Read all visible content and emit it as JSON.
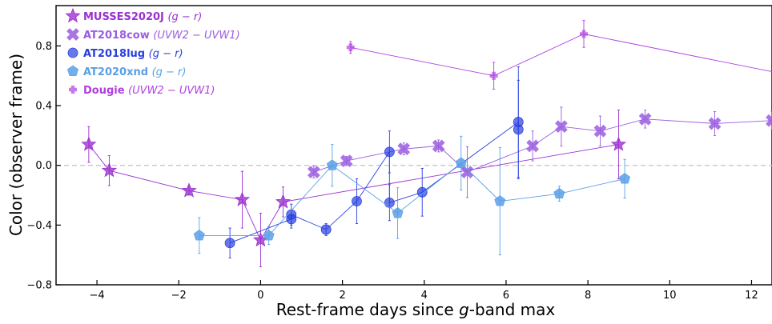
{
  "chart_data": {
    "type": "scatter",
    "xlabel_prefix": "Rest-frame days since ",
    "xlabel_band": "g",
    "xlabel_suffix": "-band max",
    "ylabel": "Color (observer frame)",
    "xlim": [
      -5.0,
      12.5
    ],
    "ylim": [
      -0.8,
      1.07
    ],
    "x_ticks": [
      -4,
      -2,
      0,
      2,
      4,
      6,
      8,
      10,
      12
    ],
    "y_ticks": [
      -0.8,
      -0.4,
      0.0,
      0.4,
      0.8
    ],
    "x_tick_labels": [
      "−4",
      "−2",
      "0",
      "2",
      "4",
      "6",
      "8",
      "10",
      "12"
    ],
    "y_tick_labels": [
      "−0.8",
      "−0.4",
      "0.0",
      "0.4",
      "0.8"
    ],
    "zero_line": 0.0,
    "legend_position": "upper-left",
    "series": [
      {
        "name": "MUSSES2020J",
        "band": "(g − r)",
        "marker": "star",
        "color": "#9b30d0",
        "points": [
          {
            "x": -4.2,
            "y": 0.14,
            "err": 0.12
          },
          {
            "x": -3.7,
            "y": -0.035,
            "err": 0.1
          },
          {
            "x": -1.75,
            "y": -0.17,
            "err": 0.03
          },
          {
            "x": -0.45,
            "y": -0.23,
            "err": 0.19
          },
          {
            "x": 0.0,
            "y": -0.5,
            "err": 0.18
          },
          {
            "x": 0.55,
            "y": -0.245,
            "err": 0.1
          },
          {
            "x": 8.75,
            "y": 0.14,
            "err": 0.23
          }
        ]
      },
      {
        "name": "AT2018cow",
        "band": "(UVW2 − UVW1)",
        "marker": "x",
        "color": "#9a5de0",
        "points": [
          {
            "x": 1.3,
            "y": -0.045,
            "err": 0.04
          },
          {
            "x": 2.1,
            "y": 0.03,
            "err": 0.03
          },
          {
            "x": 3.5,
            "y": 0.11,
            "err": 0.04
          },
          {
            "x": 4.35,
            "y": 0.13,
            "err": 0.04
          },
          {
            "x": 5.05,
            "y": -0.045,
            "err": 0.17
          },
          {
            "x": 6.65,
            "y": 0.13,
            "err": 0.1
          },
          {
            "x": 7.35,
            "y": 0.26,
            "err": 0.13
          },
          {
            "x": 8.3,
            "y": 0.23,
            "err": 0.1
          },
          {
            "x": 9.4,
            "y": 0.31,
            "err": 0.06
          },
          {
            "x": 11.1,
            "y": 0.28,
            "err": 0.08
          },
          {
            "x": 12.5,
            "y": 0.3,
            "err": 0.06
          }
        ]
      },
      {
        "name": "AT2018lug",
        "band": "(g − r)",
        "marker": "circle",
        "color": "#2a3fe0",
        "points": [
          {
            "x": -0.75,
            "y": -0.52,
            "err": 0.1
          },
          {
            "x": 0.75,
            "y": -0.36,
            "err": 0.06
          },
          {
            "x": 0.75,
            "y": -0.33,
            "err": 0.07
          },
          {
            "x": 1.6,
            "y": -0.43,
            "err": 0.04
          },
          {
            "x": 2.35,
            "y": -0.24,
            "err": 0.15
          },
          {
            "x": 3.15,
            "y": 0.09,
            "err": 0.14
          },
          {
            "x": 3.15,
            "y": -0.25,
            "err": 0.12
          },
          {
            "x": 3.95,
            "y": -0.18,
            "err": 0.16
          },
          {
            "x": 6.3,
            "y": 0.29,
            "err": 0.37
          },
          {
            "x": 6.3,
            "y": 0.24,
            "err": 0.33
          }
        ]
      },
      {
        "name": "AT2020xnd",
        "band": "(g − r)",
        "marker": "pentagon",
        "color": "#5aa0e6",
        "points": [
          {
            "x": -1.5,
            "y": -0.47,
            "err": 0.12
          },
          {
            "x": 0.2,
            "y": -0.47,
            "err": 0.06
          },
          {
            "x": 1.75,
            "y": 0.0,
            "err": 0.14
          },
          {
            "x": 3.35,
            "y": -0.32,
            "err": 0.17
          },
          {
            "x": 4.9,
            "y": 0.015,
            "err": 0.18
          },
          {
            "x": 5.85,
            "y": -0.24,
            "err": 0.36
          },
          {
            "x": 7.3,
            "y": -0.19,
            "err": 0.05
          },
          {
            "x": 8.9,
            "y": -0.09,
            "err": 0.13
          }
        ]
      },
      {
        "name": "Dougie",
        "band": "(UVW2 − UVW1)",
        "marker": "plus",
        "color": "#b040e0",
        "points": [
          {
            "x": 2.2,
            "y": 0.79,
            "err": 0.04
          },
          {
            "x": 5.7,
            "y": 0.6,
            "err": 0.09
          },
          {
            "x": 7.9,
            "y": 0.88,
            "err": 0.09
          },
          {
            "x": 13.0,
            "y": 0.6,
            "err": 0.0
          }
        ]
      }
    ]
  }
}
